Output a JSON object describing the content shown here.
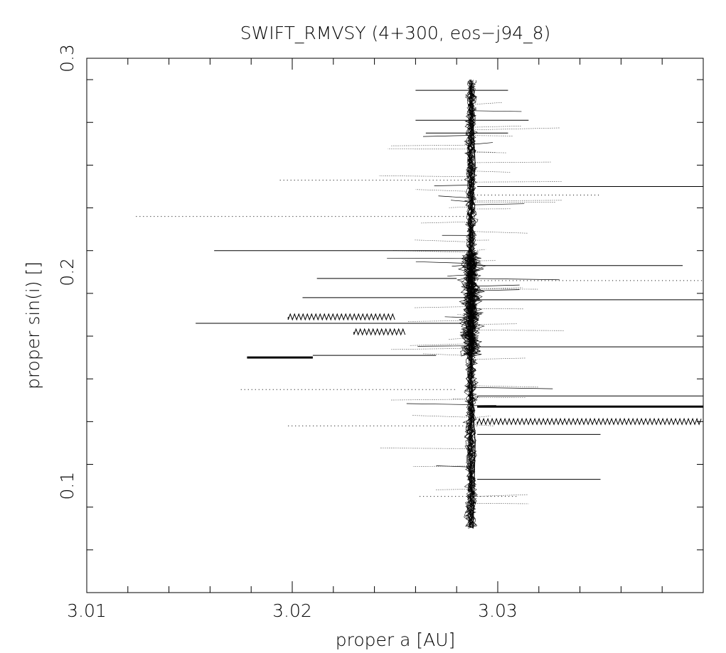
{
  "chart_data": {
    "type": "scatter",
    "title": "SWIFT_RMVSY (4+300, eos−j94_8)",
    "xlabel": "proper a [AU]",
    "ylabel": "proper sin(i) []",
    "xlim": [
      3.01,
      3.04
    ],
    "ylim": [
      0.05,
      0.3
    ],
    "xticks": [
      {
        "value": 3.01,
        "label": "3.01"
      },
      {
        "value": 3.02,
        "label": "3.02"
      },
      {
        "value": 3.03,
        "label": "3.03"
      }
    ],
    "yticks": [
      {
        "value": 0.1,
        "label": "0.1"
      },
      {
        "value": 0.2,
        "label": "0.2"
      },
      {
        "value": 0.3,
        "label": "0.3"
      }
    ],
    "x_minor_step": 0.002,
    "y_minor_step": 0.02,
    "grid": false,
    "legend": "none",
    "colors": {
      "ink": "#000000",
      "background": "#ffffff"
    },
    "cluster": {
      "center_a": 3.0287,
      "core_sini": [
        0.16,
        0.21
      ],
      "range_sini": [
        0.08,
        0.29
      ]
    },
    "series": [
      {
        "values": [
          [
            3.0287,
            0.29
          ],
          [
            3.0289,
            0.25
          ],
          [
            3.0286,
            0.21
          ],
          [
            3.0288,
            0.18
          ],
          [
            3.0287,
            0.15
          ],
          [
            3.0289,
            0.12
          ],
          [
            3.0288,
            0.08
          ]
        ]
      }
    ],
    "tracks": [
      {
        "a0": 3.0124,
        "a1": 3.0288,
        "sini": 0.226,
        "style": "dotted"
      },
      {
        "a0": 3.0162,
        "a1": 3.0288,
        "sini": 0.21,
        "style": "solid"
      },
      {
        "a0": 3.0153,
        "a1": 3.0282,
        "sini": 0.176,
        "style": "solid"
      },
      {
        "a0": 3.0178,
        "a1": 3.021,
        "sini": 0.16,
        "style": "heavy"
      },
      {
        "a0": 3.021,
        "a1": 3.027,
        "sini": 0.161,
        "style": "solid"
      },
      {
        "a0": 3.0194,
        "a1": 3.0285,
        "sini": 0.243,
        "style": "dotted"
      },
      {
        "a0": 3.0175,
        "a1": 3.028,
        "sini": 0.145,
        "style": "dotted"
      },
      {
        "a0": 3.0198,
        "a1": 3.029,
        "sini": 0.128,
        "style": "dotted"
      },
      {
        "a0": 3.0198,
        "a1": 3.025,
        "sini": 0.179,
        "style": "wavy"
      },
      {
        "a0": 3.023,
        "a1": 3.0255,
        "sini": 0.172,
        "style": "wavy"
      },
      {
        "a0": 3.0212,
        "a1": 3.028,
        "sini": 0.197,
        "style": "solid"
      },
      {
        "a0": 3.0205,
        "a1": 3.0285,
        "sini": 0.188,
        "style": "solid"
      },
      {
        "a0": 3.026,
        "a1": 3.0315,
        "sini": 0.271,
        "style": "solid"
      },
      {
        "a0": 3.026,
        "a1": 3.0305,
        "sini": 0.285,
        "style": "solid"
      },
      {
        "a0": 3.0265,
        "a1": 3.0305,
        "sini": 0.265,
        "style": "solid"
      },
      {
        "a0": 3.029,
        "a1": 3.04,
        "sini": 0.24,
        "style": "solid"
      },
      {
        "a0": 3.029,
        "a1": 3.035,
        "sini": 0.236,
        "style": "dotted"
      },
      {
        "a0": 3.029,
        "a1": 3.039,
        "sini": 0.203,
        "style": "solid"
      },
      {
        "a0": 3.029,
        "a1": 3.04,
        "sini": 0.196,
        "style": "dotted"
      },
      {
        "a0": 3.029,
        "a1": 3.04,
        "sini": 0.187,
        "style": "solid"
      },
      {
        "a0": 3.029,
        "a1": 3.04,
        "sini": 0.165,
        "style": "solid"
      },
      {
        "a0": 3.029,
        "a1": 3.04,
        "sini": 0.142,
        "style": "solid"
      },
      {
        "a0": 3.029,
        "a1": 3.04,
        "sini": 0.137,
        "style": "heavy"
      },
      {
        "a0": 3.029,
        "a1": 3.04,
        "sini": 0.13,
        "style": "wavy"
      },
      {
        "a0": 3.029,
        "a1": 3.035,
        "sini": 0.124,
        "style": "solid"
      },
      {
        "a0": 3.029,
        "a1": 3.035,
        "sini": 0.103,
        "style": "solid"
      },
      {
        "a0": 3.0262,
        "a1": 3.031,
        "sini": 0.095,
        "style": "dotted"
      }
    ]
  }
}
